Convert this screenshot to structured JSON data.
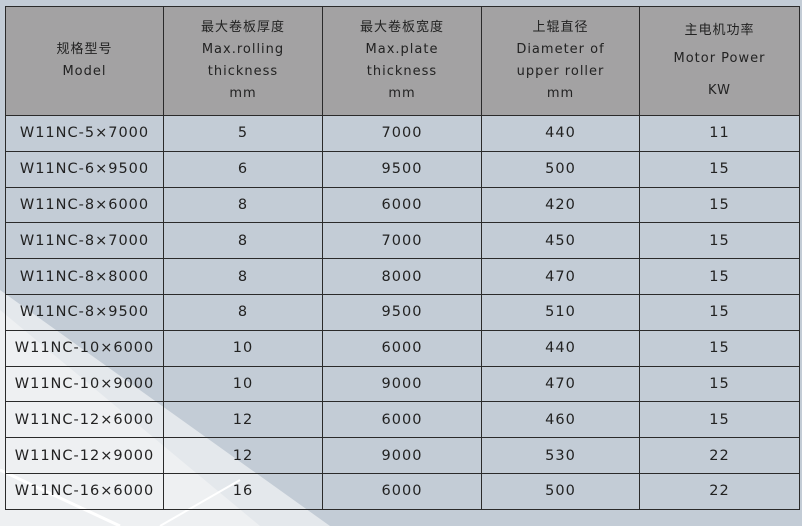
{
  "headers": [
    {
      "zh": "规格型号",
      "en": [
        "Model"
      ]
    },
    {
      "zh": "最大卷板厚度",
      "en": [
        "Max.rolling",
        "thickness",
        "mm"
      ]
    },
    {
      "zh": "最大卷板宽度",
      "en": [
        "Max.plate",
        "thickness",
        "mm"
      ]
    },
    {
      "zh": "上辊直径",
      "en": [
        "Diameter of",
        "upper roller",
        "mm"
      ]
    },
    {
      "zh": "主电机功率",
      "en": [
        "Motor Power",
        "KW"
      ]
    }
  ],
  "rows": [
    [
      "W11NC-5×7000",
      "5",
      "7000",
      "440",
      "11"
    ],
    [
      "W11NC-6×9500",
      "6",
      "9500",
      "500",
      "15"
    ],
    [
      "W11NC-8×6000",
      "8",
      "6000",
      "420",
      "15"
    ],
    [
      "W11NC-8×7000",
      "8",
      "7000",
      "450",
      "15"
    ],
    [
      "W11NC-8×8000",
      "8",
      "8000",
      "470",
      "15"
    ],
    [
      "W11NC-8×9500",
      "8",
      "9500",
      "510",
      "15"
    ],
    [
      "W11NC-10×6000",
      "10",
      "6000",
      "440",
      "15"
    ],
    [
      "W11NC-10×9000",
      "10",
      "9000",
      "470",
      "15"
    ],
    [
      "W11NC-12×6000",
      "12",
      "6000",
      "460",
      "15"
    ],
    [
      "W11NC-12×9000",
      "12",
      "9000",
      "530",
      "22"
    ],
    [
      "W11NC-16×6000",
      "16",
      "6000",
      "500",
      "22"
    ]
  ]
}
